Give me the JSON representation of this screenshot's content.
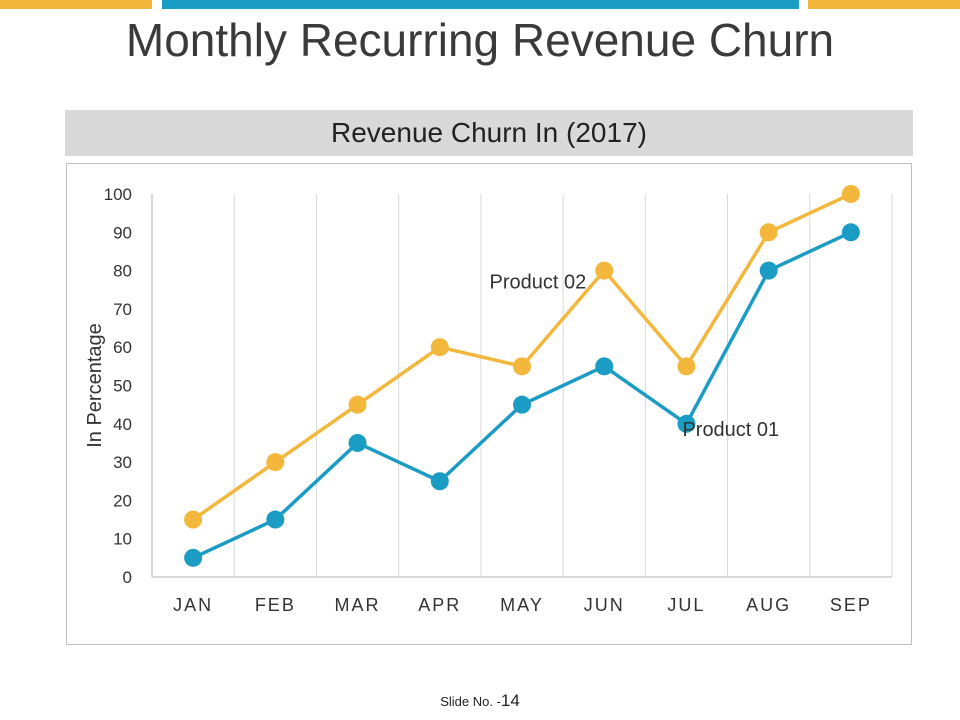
{
  "colors": {
    "yellow": "#f3b73b",
    "blue": "#1b9cc4",
    "grid": "#d9d9d9",
    "axis": "#b0b0b0",
    "text": "#333333"
  },
  "slide": {
    "title": "Monthly Recurring Revenue Churn"
  },
  "footer": {
    "label": "Slide No. -",
    "number": "14"
  },
  "chart_data": {
    "type": "line",
    "title": "Revenue Churn In (2017)",
    "ylabel": "In Percentage",
    "xlabel": "",
    "categories": [
      "JAN",
      "FEB",
      "MAR",
      "APR",
      "MAY",
      "JUN",
      "JUL",
      "AUG",
      "SEP"
    ],
    "ylim": [
      0,
      100
    ],
    "yticks": [
      0,
      10,
      20,
      30,
      40,
      50,
      60,
      70,
      80,
      90,
      100
    ],
    "grid": "vertical",
    "series": [
      {
        "name": "Product 02",
        "color": "#f3b73b",
        "values": [
          15,
          30,
          45,
          60,
          55,
          80,
          55,
          90,
          100
        ],
        "label_at": "JUN"
      },
      {
        "name": "Product 01",
        "color": "#1b9cc4",
        "values": [
          5,
          15,
          35,
          25,
          45,
          55,
          40,
          80,
          90
        ],
        "label_at": "JUL"
      }
    ]
  }
}
